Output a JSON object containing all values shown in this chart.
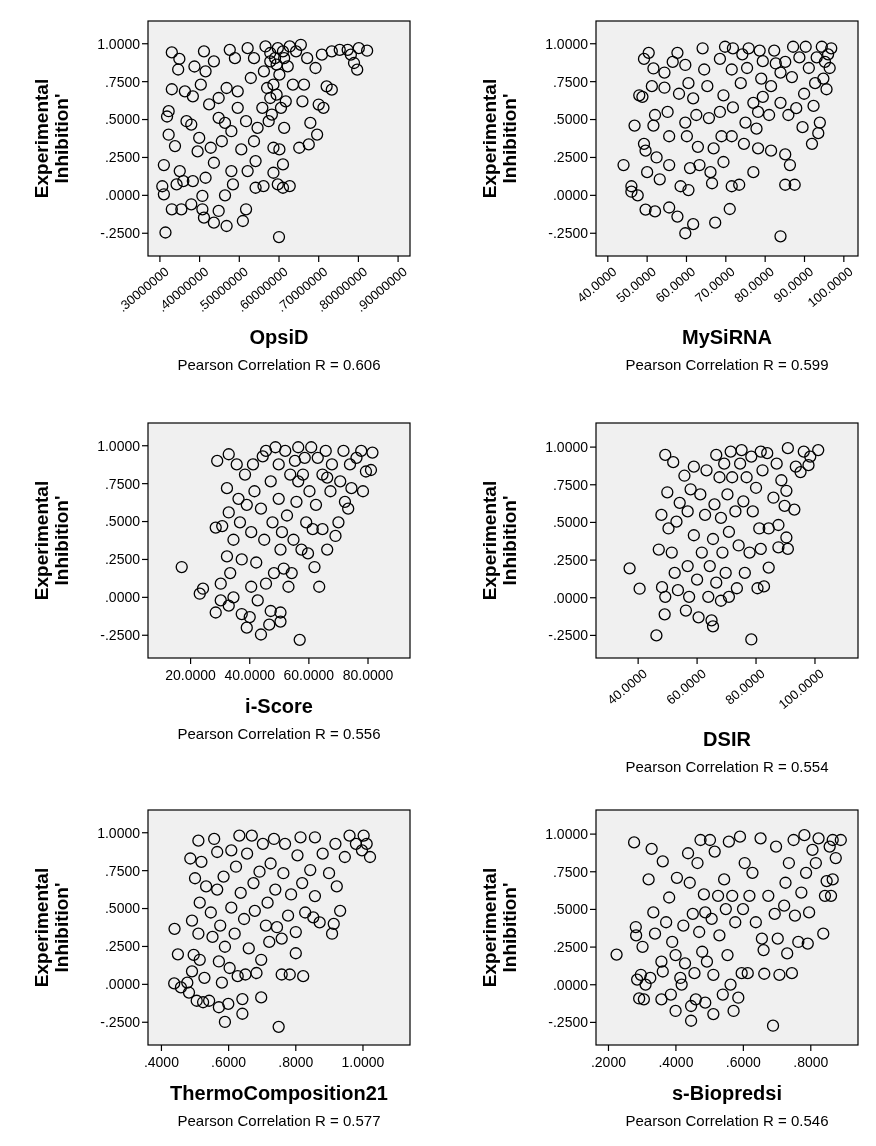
{
  "chart_data": [
    {
      "type": "scatter",
      "xlabel": "OpsiD",
      "ylabel": "Experimental Inhibition'",
      "annotations": [
        "Pearson Correlation R = 0.606"
      ],
      "marker": "circle",
      "color": "#000000",
      "xlim": [
        0.27,
        0.93
      ],
      "xticks": [
        {
          "value": 0.3,
          "label": ".30000000"
        },
        {
          "value": 0.4,
          "label": ".40000000"
        },
        {
          "value": 0.5,
          "label": ".50000000"
        },
        {
          "value": 0.6,
          "label": ".60000000"
        },
        {
          "value": 0.7,
          "label": ".70000000"
        },
        {
          "value": 0.8,
          "label": ".80000000"
        },
        {
          "value": 0.9,
          "label": ".90000000"
        }
      ],
      "ylim": [
        -0.4,
        1.15
      ],
      "yticks": [
        {
          "value": -0.25,
          "label": "-.2500"
        },
        {
          "value": 0,
          "label": ".0000"
        },
        {
          "value": 0.25,
          "label": ".2500"
        },
        {
          "value": 0.5,
          "label": ".5000"
        },
        {
          "value": 0.75,
          "label": ".7500"
        },
        {
          "value": 1,
          "label": "1.0000"
        }
      ],
      "x": [
        0.314,
        0.6,
        0.33,
        0.349,
        0.346,
        0.33,
        0.306,
        0.31,
        0.322,
        0.322,
        0.318,
        0.338,
        0.35,
        0.342,
        0.359,
        0.33,
        0.354,
        0.31,
        0.363,
        0.387,
        0.383,
        0.379,
        0.367,
        0.399,
        0.395,
        0.383,
        0.379,
        0.407,
        0.411,
        0.415,
        0.403,
        0.424,
        0.436,
        0.448,
        0.428,
        0.436,
        0.415,
        0.407,
        0.411,
        0.436,
        0.448,
        0.464,
        0.468,
        0.448,
        0.456,
        0.464,
        0.48,
        0.484,
        0.48,
        0.476,
        0.468,
        0.489,
        0.496,
        0.496,
        0.505,
        0.509,
        0.517,
        0.521,
        0.517,
        0.529,
        0.521,
        0.537,
        0.537,
        0.541,
        0.541,
        0.561,
        0.546,
        0.558,
        0.562,
        0.566,
        0.578,
        0.57,
        0.574,
        0.586,
        0.586,
        0.578,
        0.594,
        0.597,
        0.601,
        0.605,
        0.601,
        0.61,
        0.597,
        0.61,
        0.627,
        0.613,
        0.617,
        0.613,
        0.627,
        0.635,
        0.643,
        0.655,
        0.651,
        0.659,
        0.663,
        0.671,
        0.675,
        0.679,
        0.692,
        0.696,
        0.7,
        0.708,
        0.712,
        0.72,
        0.733,
        0.733,
        0.753,
        0.773,
        0.789,
        0.801,
        0.797,
        0.822,
        0.781,
        0.578,
        0.59,
        0.61,
        0.586,
        0.594,
        0.582,
        0.622
      ],
      "values": [
        -0.245,
        -0.275,
        0.943,
        0.9,
        0.83,
        0.7,
        0.06,
        0.2,
        0.4,
        0.555,
        0.52,
        0.325,
        0.16,
        0.072,
        0.094,
        -0.092,
        -0.092,
        0.007,
        0.686,
        0.85,
        0.653,
        0.467,
        0.489,
        0.379,
        0.29,
        0.094,
        -0.059,
        -0.092,
        0.95,
        0.818,
        0.73,
        0.6,
        0.884,
        0.642,
        0.314,
        0.215,
        0.116,
        -0.004,
        -0.147,
        -0.18,
        -0.103,
        0,
        -0.202,
        0.511,
        0.357,
        0.478,
        0.16,
        0.072,
        0.423,
        0.96,
        0.708,
        0.905,
        0.686,
        0.577,
        0.303,
        -0.169,
        -0.092,
        0.16,
        0.489,
        0.774,
        0.971,
        0.905,
        0.357,
        0.226,
        0.05,
        0.061,
        0.445,
        0.577,
        0.818,
        0.982,
        0.939,
        0.708,
        0.489,
        0.314,
        0.149,
        0.642,
        0.862,
        0.971,
        0.796,
        0.577,
        0.303,
        0.204,
        0.072,
        0.05,
        0.061,
        0.445,
        0.62,
        0.905,
        0.982,
        0.73,
        0.95,
        0.993,
        0.314,
        0.62,
        0.73,
        0.905,
        0.336,
        0.478,
        0.84,
        0.401,
        0.599,
        0.928,
        0.577,
        0.719,
        0.697,
        0.95,
        0.96,
        0.96,
        0.873,
        0.971,
        0.829,
        0.954,
        0.928,
        0.884,
        0.905,
        0.95,
        0.73,
        0.664,
        0.533,
        0.851
      ]
    },
    {
      "type": "scatter",
      "xlabel": "MySiRNA",
      "ylabel": "Experimental Inhibition'",
      "annotations": [
        "Pearson Correlation R = 0.599"
      ],
      "marker": "circle",
      "color": "#000000",
      "xlim": [
        37,
        103.6
      ],
      "xticks": [
        {
          "value": 40,
          "label": "40.0000"
        },
        {
          "value": 50,
          "label": "50.0000"
        },
        {
          "value": 60,
          "label": "60.0000"
        },
        {
          "value": 70,
          "label": "70.0000"
        },
        {
          "value": 80,
          "label": "80.0000"
        },
        {
          "value": 90,
          "label": "90.0000"
        },
        {
          "value": 100,
          "label": "100.0000"
        }
      ],
      "ylim": [
        -0.4,
        1.15
      ],
      "yticks": [
        {
          "value": -0.25,
          "label": "-.2500"
        },
        {
          "value": 0,
          "label": ".0000"
        },
        {
          "value": 0.25,
          "label": ".2500"
        },
        {
          "value": 0.5,
          "label": ".5000"
        },
        {
          "value": 0.75,
          "label": ".7500"
        },
        {
          "value": 1,
          "label": "1.0000"
        }
      ],
      "x": [
        44.0,
        46.8,
        46.0,
        46.0,
        48.0,
        48.8,
        50.4,
        49.2,
        49.2,
        49.6,
        50.0,
        49.6,
        47.6,
        51.6,
        51.2,
        52.0,
        51.6,
        52.4,
        52.0,
        53.2,
        54.4,
        54.4,
        55.2,
        55.6,
        55.6,
        55.6,
        57.7,
        56.5,
        58.1,
        57.7,
        58.5,
        59.7,
        59.7,
        60.1,
        59.7,
        60.5,
        60.9,
        60.5,
        61.7,
        61.7,
        62.5,
        62.9,
        63.3,
        64.1,
        64.5,
        65.3,
        66.5,
        67.3,
        66.1,
        66.9,
        65.7,
        68.5,
        68.9,
        69.4,
        68.5,
        69.4,
        69.8,
        71.0,
        71.5,
        71.5,
        71.8,
        71.5,
        71.8,
        73.4,
        73.8,
        74.2,
        74.6,
        75.0,
        75.8,
        77.0,
        77.0,
        78.2,
        77.8,
        78.2,
        78.6,
        79.0,
        79.4,
        81.0,
        81.5,
        81.5,
        82.3,
        82.7,
        83.9,
        83.9,
        85.1,
        85.1,
        85.9,
        86.3,
        86.8,
        87.1,
        87.5,
        87.9,
        88.7,
        89.5,
        89.9,
        90.3,
        91.1,
        91.9,
        92.3,
        92.7,
        93.1,
        93.5,
        93.9,
        94.4,
        94.8,
        95.6,
        96.0,
        96.4,
        96.8,
        95.2,
        85.1,
        83.9,
        79.4,
        75.4
      ],
      "values": [
        0.2,
        0.46,
        0.06,
        0.024,
        0.66,
        0.65,
        0.94,
        0.9,
        0.34,
        0.295,
        0.153,
        -0.094,
        0,
        0.837,
        0.72,
        0.53,
        0.46,
        0.25,
        -0.106,
        0.106,
        0.81,
        0.71,
        0.55,
        0.39,
        0.2,
        -0.08,
        0.94,
        0.88,
        0.67,
        -0.14,
        0.06,
        0.86,
        0.48,
        0.39,
        -0.25,
        0.035,
        0.18,
        0.74,
        0.64,
        -0.19,
        0.53,
        0.32,
        0.2,
        0.97,
        0.83,
        0.72,
        0.08,
        -0.18,
        0.153,
        0.31,
        0.51,
        0.55,
        0.39,
        0.22,
        0.9,
        0.66,
        0.98,
        -0.09,
        0.06,
        0.39,
        0.58,
        0.83,
        0.97,
        0.07,
        0.74,
        0.93,
        0.34,
        0.48,
        0.97,
        0.153,
        0.61,
        0.55,
        0.44,
        0.31,
        0.955,
        0.77,
        0.65,
        0.53,
        0.72,
        0.295,
        0.955,
        0.87,
        -0.27,
        0.61,
        0.07,
        0.27,
        0.53,
        0.2,
        0.78,
        0.98,
        0.07,
        0.575,
        0.91,
        0.45,
        0.67,
        0.98,
        0.84,
        0.34,
        0.59,
        0.74,
        0.91,
        0.41,
        0.48,
        0.98,
        0.77,
        0.7,
        0.93,
        0.84,
        0.97,
        0.88,
        0.88,
        0.81,
        0.885,
        0.84
      ]
    },
    {
      "type": "scatter",
      "xlabel": "i-Score",
      "ylabel": "Experimental Inhibition'",
      "annotations": [
        "Pearson Correlation R = 0.556"
      ],
      "marker": "circle",
      "color": "#000000",
      "xlim": [
        5.6,
        94.2
      ],
      "xticks": [
        {
          "value": 20,
          "label": "20.0000"
        },
        {
          "value": 40,
          "label": "40.0000"
        },
        {
          "value": 60,
          "label": "60.0000"
        },
        {
          "value": 80,
          "label": "80.0000"
        }
      ],
      "ylim": [
        -0.4,
        1.15
      ],
      "yticks": [
        {
          "value": -0.25,
          "label": "-.2500"
        },
        {
          "value": 0,
          "label": ".0000"
        },
        {
          "value": 0.25,
          "label": ".2500"
        },
        {
          "value": 0.5,
          "label": ".5000"
        },
        {
          "value": 0.75,
          "label": ".7500"
        },
        {
          "value": 1,
          "label": "1.0000"
        }
      ],
      "x": [
        17.0,
        23.1,
        24.2,
        28.5,
        28.5,
        29.0,
        30.7,
        30.2,
        30.2,
        32.9,
        32.3,
        32.9,
        32.3,
        32.9,
        33.4,
        34.5,
        34.5,
        35.6,
        36.2,
        36.7,
        37.3,
        37.3,
        38.4,
        39.0,
        39.0,
        40.0,
        40.5,
        40.5,
        41.1,
        41.6,
        42.2,
        42.7,
        43.8,
        43.8,
        44.4,
        44.9,
        45.5,
        45.5,
        46.6,
        47.1,
        47.1,
        47.7,
        48.2,
        48.7,
        49.8,
        49.8,
        50.4,
        50.4,
        50.4,
        50.9,
        51.5,
        52.0,
        52.6,
        53.1,
        53.7,
        54.2,
        54.8,
        55.3,
        55.8,
        56.4,
        56.9,
        57.5,
        58.0,
        58.6,
        59.1,
        59.7,
        60.2,
        60.8,
        61.3,
        61.9,
        62.4,
        63.0,
        63.5,
        64.6,
        64.6,
        65.7,
        66.2,
        67.3,
        67.8,
        69.0,
        70.0,
        70.6,
        71.7,
        72.2,
        73.3,
        73.9,
        74.4,
        76.1,
        77.7,
        78.3,
        79.3,
        81.0,
        81.5,
        66.2,
        56.4
      ],
      "values": [
        0.2,
        0.024,
        0.057,
        -0.1,
        0.46,
        0.9,
        0.47,
        0.09,
        -0.02,
        0.944,
        0.72,
        0.56,
        0.27,
        -0.055,
        0.16,
        0.38,
        0,
        0.877,
        0.65,
        0.495,
        0.25,
        -0.11,
        0.81,
        0.61,
        -0.2,
        -0.13,
        0.43,
        0.07,
        0.877,
        0.7,
        0.23,
        -0.02,
        -0.245,
        0.585,
        0.93,
        0.38,
        0.09,
        0.966,
        -0.18,
        -0.09,
        0.765,
        0.495,
        0.16,
        0.99,
        0.877,
        0.65,
        -0.16,
        -0.1,
        0.315,
        0.43,
        0.19,
        0.966,
        0.54,
        0.07,
        0.81,
        0.16,
        0.38,
        0.9,
        0.63,
        0.99,
        -0.28,
        0.315,
        0.81,
        0.92,
        0.495,
        0.29,
        0.7,
        0.99,
        0.45,
        0.2,
        0.61,
        0.92,
        0.07,
        0.45,
        0.81,
        0.966,
        0.315,
        0.7,
        0.877,
        0.405,
        0.495,
        0.765,
        0.966,
        0.63,
        0.585,
        0.877,
        0.72,
        0.92,
        0.966,
        0.7,
        0.83,
        0.84,
        0.955,
        0.79,
        0.765
      ]
    },
    {
      "type": "scatter",
      "xlabel": "DSIR",
      "ylabel": "Experimental Inhibition'",
      "annotations": [
        "Pearson Correlation R = 0.554"
      ],
      "marker": "circle",
      "color": "#000000",
      "xlim": [
        25.7,
        114.6
      ],
      "xticks": [
        {
          "value": 40,
          "label": "40.0000"
        },
        {
          "value": 60,
          "label": "60.0000"
        },
        {
          "value": 80,
          "label": "80.0000"
        },
        {
          "value": 100,
          "label": "100.0000"
        }
      ],
      "ylim": [
        -0.4,
        1.16
      ],
      "yticks": [
        {
          "value": -0.25,
          "label": "-.2500"
        },
        {
          "value": 0,
          "label": ".0000"
        },
        {
          "value": 0.25,
          "label": ".2500"
        },
        {
          "value": 0.5,
          "label": ".5000"
        },
        {
          "value": 0.75,
          "label": ".7500"
        },
        {
          "value": 1,
          "label": "1.0000"
        }
      ],
      "x": [
        37.1,
        40.5,
        46.2,
        49.2,
        51.9,
        49.9,
        47.9,
        47.0,
        48.1,
        49.0,
        49.2,
        50.3,
        51.4,
        52.4,
        53.0,
        53.5,
        54.1,
        55.7,
        56.2,
        56.8,
        56.8,
        57.3,
        57.8,
        58.9,
        58.9,
        60.0,
        60.5,
        61.1,
        61.6,
        62.7,
        63.2,
        63.8,
        64.3,
        64.9,
        65.4,
        65.4,
        65.9,
        66.5,
        66.5,
        67.6,
        68.1,
        68.1,
        68.6,
        69.2,
        69.7,
        70.3,
        70.8,
        70.8,
        71.4,
        71.9,
        73.0,
        73.5,
        74.1,
        74.6,
        75.7,
        76.2,
        76.8,
        77.8,
        78.4,
        78.4,
        78.9,
        80.0,
        80.5,
        81.1,
        81.6,
        82.2,
        82.7,
        83.8,
        84.3,
        84.3,
        85.9,
        87.0,
        87.6,
        87.6,
        88.6,
        89.7,
        90.3,
        90.3,
        90.8,
        90.8,
        93.0,
        93.5,
        95.1,
        96.2,
        97.8,
        98.4,
        101.1,
        75.1,
        81.6
      ],
      "values": [
        0.195,
        0.06,
        -0.25,
        0.948,
        0.9,
        0.7,
        0.55,
        0.32,
        0.07,
        -0.11,
        0.006,
        0.46,
        0.3,
        0.165,
        0.505,
        0.05,
        0.63,
        0.81,
        -0.085,
        0.21,
        0.573,
        0.006,
        0.72,
        0.415,
        0.87,
        0.12,
        -0.13,
        0.686,
        0.3,
        0.55,
        0.846,
        0.006,
        0.21,
        -0.15,
        0.39,
        -0.19,
        0.62,
        0.948,
        0.1,
        0.8,
        -0.02,
        0.53,
        0.3,
        0.89,
        0.165,
        0.686,
        0.437,
        0.006,
        0.97,
        0.8,
        0.573,
        0.063,
        0.347,
        0.89,
        0.64,
        0.165,
        0.8,
        0.3,
        -0.277,
        0.937,
        0.573,
        0.73,
        0.063,
        0.46,
        0.324,
        0.846,
        0.075,
        0.96,
        0.2,
        0.46,
        0.664,
        0.89,
        0.483,
        0.335,
        0.78,
        0.61,
        0.4,
        0.71,
        0.324,
        0.993,
        0.585,
        0.87,
        0.834,
        0.97,
        0.88,
        0.937,
        0.98,
        0.98,
        0.97
      ]
    },
    {
      "type": "scatter",
      "xlabel": "ThermoComposition21",
      "ylabel": "Experimental Inhibition'",
      "annotations": [
        "Pearson Correlation R = 0.577"
      ],
      "marker": "circle",
      "color": "#000000",
      "xlim": [
        0.36,
        1.14
      ],
      "xticks": [
        {
          "value": 0.4,
          "label": ".4000"
        },
        {
          "value": 0.6,
          "label": ".6000"
        },
        {
          "value": 0.8,
          "label": ".8000"
        },
        {
          "value": 1,
          "label": "1.0000"
        }
      ],
      "ylim": [
        -0.4,
        1.15
      ],
      "yticks": [
        {
          "value": -0.25,
          "label": "-.2500"
        },
        {
          "value": 0,
          "label": ".0000"
        },
        {
          "value": 0.25,
          "label": ".2500"
        },
        {
          "value": 0.5,
          "label": ".5000"
        },
        {
          "value": 0.75,
          "label": ".7500"
        },
        {
          "value": 1,
          "label": "1.0000"
        }
      ],
      "x": [
        0.439,
        0.438,
        0.449,
        0.458,
        0.477,
        0.482,
        0.486,
        0.491,
        0.491,
        0.496,
        0.5,
        0.505,
        0.51,
        0.51,
        0.514,
        0.514,
        0.519,
        0.524,
        0.528,
        0.533,
        0.542,
        0.547,
        0.552,
        0.557,
        0.566,
        0.566,
        0.571,
        0.571,
        0.575,
        0.58,
        0.585,
        0.589,
        0.589,
        0.599,
        0.603,
        0.608,
        0.608,
        0.618,
        0.622,
        0.627,
        0.632,
        0.636,
        0.641,
        0.641,
        0.646,
        0.65,
        0.655,
        0.66,
        0.669,
        0.674,
        0.678,
        0.683,
        0.692,
        0.697,
        0.697,
        0.702,
        0.711,
        0.716,
        0.721,
        0.725,
        0.735,
        0.739,
        0.744,
        0.749,
        0.758,
        0.758,
        0.763,
        0.768,
        0.777,
        0.782,
        0.786,
        0.8,
        0.8,
        0.805,
        0.814,
        0.819,
        0.822,
        0.828,
        0.843,
        0.852,
        0.857,
        0.857,
        0.871,
        0.88,
        0.899,
        0.908,
        0.913,
        0.918,
        0.922,
        0.932,
        0.946,
        0.96,
        0.979,
        0.997,
        1.002,
        1.021,
        1.011
      ],
      "values": [
        0.366,
        0.006,
        0.198,
        -0.02,
        0.011,
        -0.054,
        0.83,
        0.42,
        0.086,
        0.194,
        0.7,
        -0.108,
        0.948,
        0.334,
        0.539,
        0.162,
        0.808,
        -0.118,
        0.043,
        0.646,
        -0.108,
        0.474,
        0.313,
        0.959,
        0.873,
        0.625,
        -0.151,
        0.151,
        0.388,
        0.011,
        0.711,
        0.248,
        -0.248,
        -0.129,
        0.108,
        0.506,
        0.884,
        0.334,
        0.776,
        0.054,
        0.981,
        0.603,
        -0.097,
        -0.194,
        0.431,
        0.065,
        0.862,
        0.237,
        0.981,
        0.668,
        0.485,
        0.075,
        0.743,
        -0.086,
        0.162,
        0.927,
        0.388,
        0.539,
        0.28,
        0.797,
        0.959,
        0.625,
        0.377,
        -0.28,
        0.065,
        0.302,
        0.733,
        0.927,
        0.453,
        0.065,
        0.593,
        0.205,
        0.345,
        0.851,
        0.97,
        0.668,
        0.054,
        0.474,
        0.754,
        0.442,
        0.97,
        0.582,
        0.409,
        0.862,
        0.733,
        0.334,
        0.399,
        0.927,
        0.646,
        0.485,
        0.84,
        0.981,
        0.927,
        0.884,
        0.981,
        0.84,
        0.927
      ]
    },
    {
      "type": "scatter",
      "xlabel": "s-Biopredsi",
      "ylabel": "Experimental Inhibition'",
      "annotations": [
        "Pearson Correlation R = 0.546"
      ],
      "marker": "circle",
      "color": "#000000",
      "xlim": [
        0.163,
        0.94
      ],
      "xticks": [
        {
          "value": 0.2,
          "label": ".2000"
        },
        {
          "value": 0.4,
          "label": ".4000"
        },
        {
          "value": 0.6,
          "label": ".6000"
        },
        {
          "value": 0.8,
          "label": ".8000"
        }
      ],
      "ylim": [
        -0.4,
        1.16
      ],
      "yticks": [
        {
          "value": -0.25,
          "label": "-.2500"
        },
        {
          "value": 0,
          "label": ".0000"
        },
        {
          "value": 0.25,
          "label": ".2500"
        },
        {
          "value": 0.5,
          "label": ".5000"
        },
        {
          "value": 0.75,
          "label": ".7500"
        },
        {
          "value": 1,
          "label": "1.0000"
        }
      ],
      "x": [
        0.224,
        0.276,
        0.281,
        0.282,
        0.285,
        0.291,
        0.296,
        0.301,
        0.305,
        0.31,
        0.319,
        0.324,
        0.328,
        0.333,
        0.338,
        0.357,
        0.357,
        0.361,
        0.361,
        0.371,
        0.38,
        0.385,
        0.389,
        0.399,
        0.399,
        0.403,
        0.413,
        0.417,
        0.422,
        0.427,
        0.436,
        0.441,
        0.445,
        0.445,
        0.45,
        0.455,
        0.459,
        0.464,
        0.469,
        0.473,
        0.478,
        0.483,
        0.487,
        0.487,
        0.492,
        0.501,
        0.506,
        0.511,
        0.511,
        0.515,
        0.525,
        0.529,
        0.539,
        0.543,
        0.548,
        0.553,
        0.557,
        0.562,
        0.567,
        0.571,
        0.576,
        0.585,
        0.59,
        0.595,
        0.599,
        0.604,
        0.613,
        0.618,
        0.627,
        0.637,
        0.651,
        0.655,
        0.66,
        0.662,
        0.674,
        0.688,
        0.693,
        0.697,
        0.702,
        0.707,
        0.721,
        0.725,
        0.73,
        0.735,
        0.744,
        0.749,
        0.753,
        0.763,
        0.772,
        0.781,
        0.786,
        0.791,
        0.795,
        0.805,
        0.815,
        0.823,
        0.837,
        0.842,
        0.847,
        0.86,
        0.865,
        0.865,
        0.874,
        0.889,
        0.856
      ],
      "values": [
        0.2,
        0.945,
        0.383,
        0.328,
        0.034,
        -0.091,
        0.066,
        0.252,
        -0.097,
        0.001,
        0.699,
        0.045,
        0.902,
        0.48,
        0.339,
        -0.097,
        0.153,
        0.819,
        0.088,
        0.415,
        0.579,
        -0.065,
        0.284,
        -0.174,
        0.197,
        0.71,
        0.045,
        0.001,
        0.393,
        0.142,
        0.873,
        0.677,
        -0.239,
        -0.141,
        0.47,
        0.077,
        -0.097,
        0.808,
        0.35,
        0.961,
        0.219,
        0.6,
        -0.119,
        0.48,
        0.153,
        0.961,
        0.437,
        -0.195,
        0.066,
        0.884,
        0.59,
        0.328,
        -0.065,
        0.699,
        0.502,
        0.197,
        0.95,
        0.001,
        0.59,
        -0.174,
        0.415,
        -0.086,
        0.983,
        0.077,
        0.502,
        0.808,
        0.077,
        0.59,
        0.743,
        0.415,
        0.972,
        0.306,
        0.23,
        0.073,
        0.59,
        -0.272,
        0.47,
        0.917,
        0.306,
        0.066,
        0.525,
        0.677,
        0.208,
        0.808,
        0.077,
        0.961,
        0.459,
        0.284,
        0.612,
        0.993,
        0.743,
        0.273,
        0.48,
        0.895,
        0.808,
        0.972,
        0.339,
        0.59,
        0.688,
        0.59,
        0.699,
        0.961,
        0.841,
        0.961,
        0.917
      ]
    }
  ]
}
